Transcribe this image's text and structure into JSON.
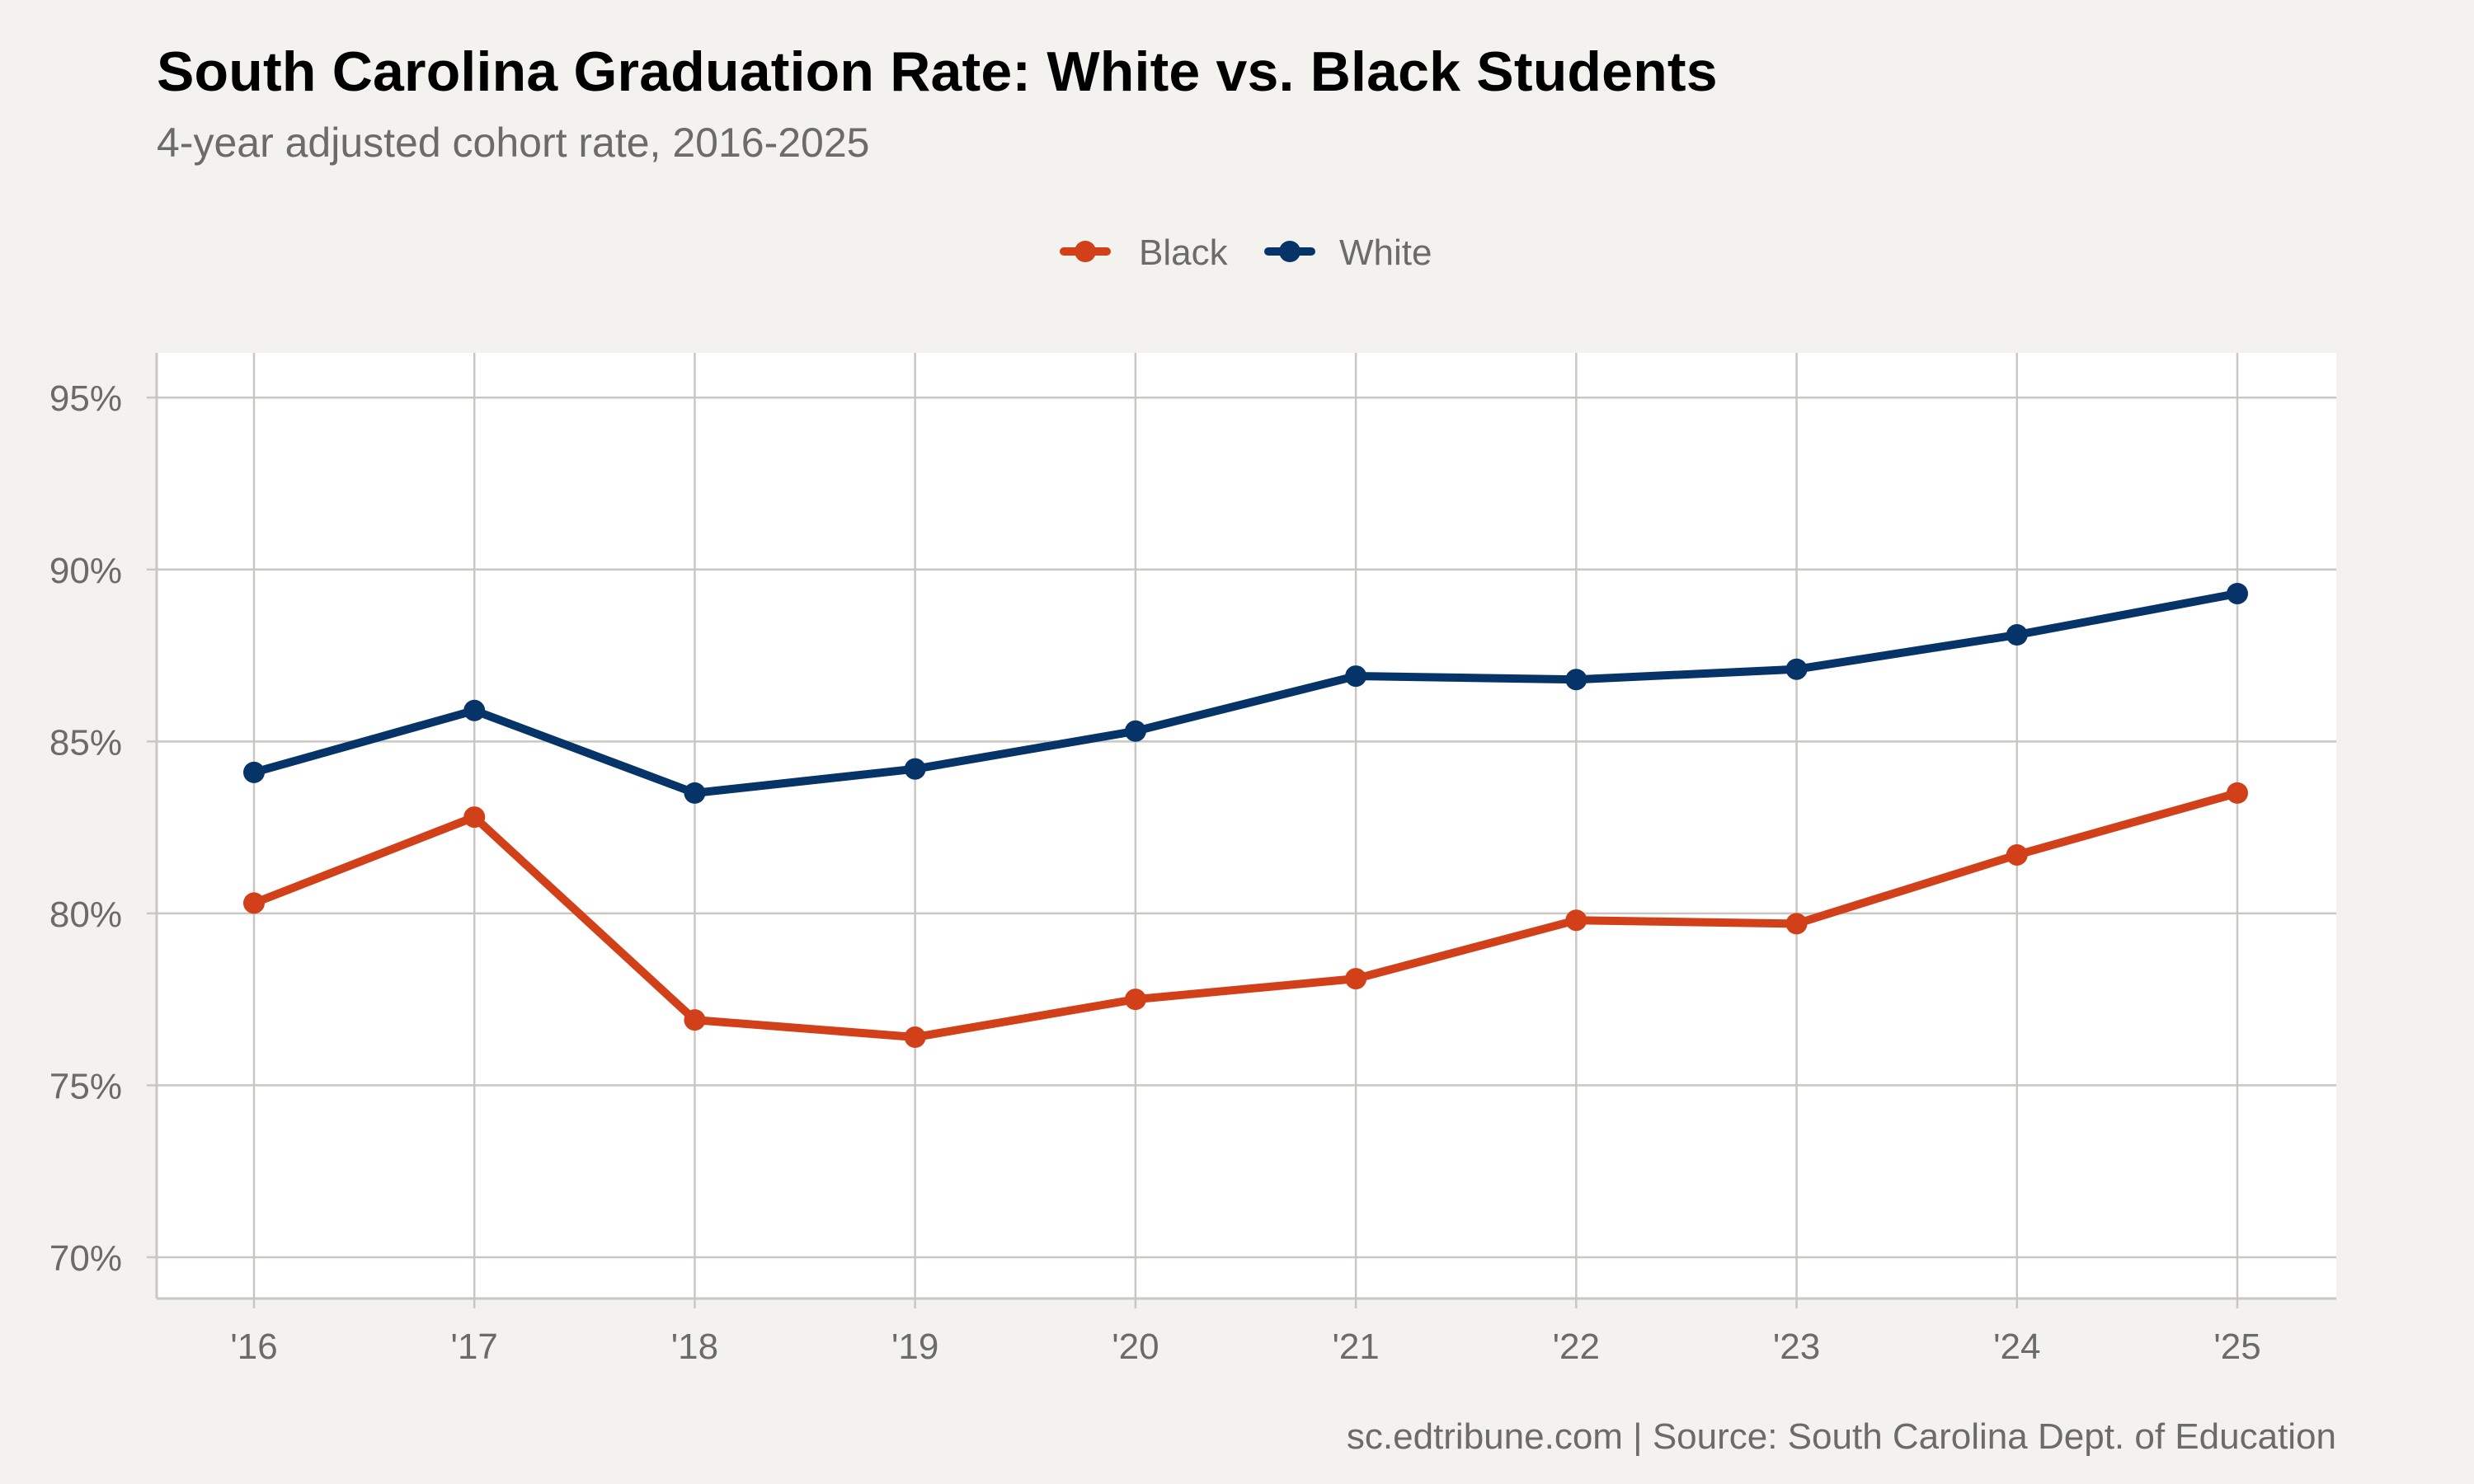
{
  "title": "South Carolina Graduation Rate: White vs. Black Students",
  "subtitle": "4-year adjusted cohort rate, 2016-2025",
  "caption": "sc.edtribune.com | Source: South Carolina Dept. of Education",
  "chart_data": {
    "type": "line",
    "title": "South Carolina Graduation Rate: White vs. Black Students",
    "subtitle": "4-year adjusted cohort rate, 2016-2025",
    "xlabel": "",
    "ylabel": "",
    "categories": [
      "'16",
      "'17",
      "'18",
      "'19",
      "'20",
      "'21",
      "'22",
      "'23",
      "'24",
      "'25"
    ],
    "ylim": [
      68.8,
      96.3
    ],
    "yticks": [
      70,
      75,
      80,
      85,
      90,
      95
    ],
    "ytick_labels": [
      "70%",
      "75%",
      "80%",
      "85%",
      "90%",
      "95%"
    ],
    "grid": true,
    "legend_position": "top-center",
    "series": [
      {
        "name": "Black",
        "color": "#d2401a",
        "values": [
          80.3,
          82.8,
          76.9,
          76.4,
          77.5,
          78.1,
          79.8,
          79.7,
          81.7,
          83.5
        ]
      },
      {
        "name": "White",
        "color": "#063468",
        "values": [
          84.1,
          85.9,
          83.5,
          84.2,
          85.3,
          86.9,
          86.8,
          87.1,
          88.1,
          89.3
        ]
      }
    ]
  }
}
